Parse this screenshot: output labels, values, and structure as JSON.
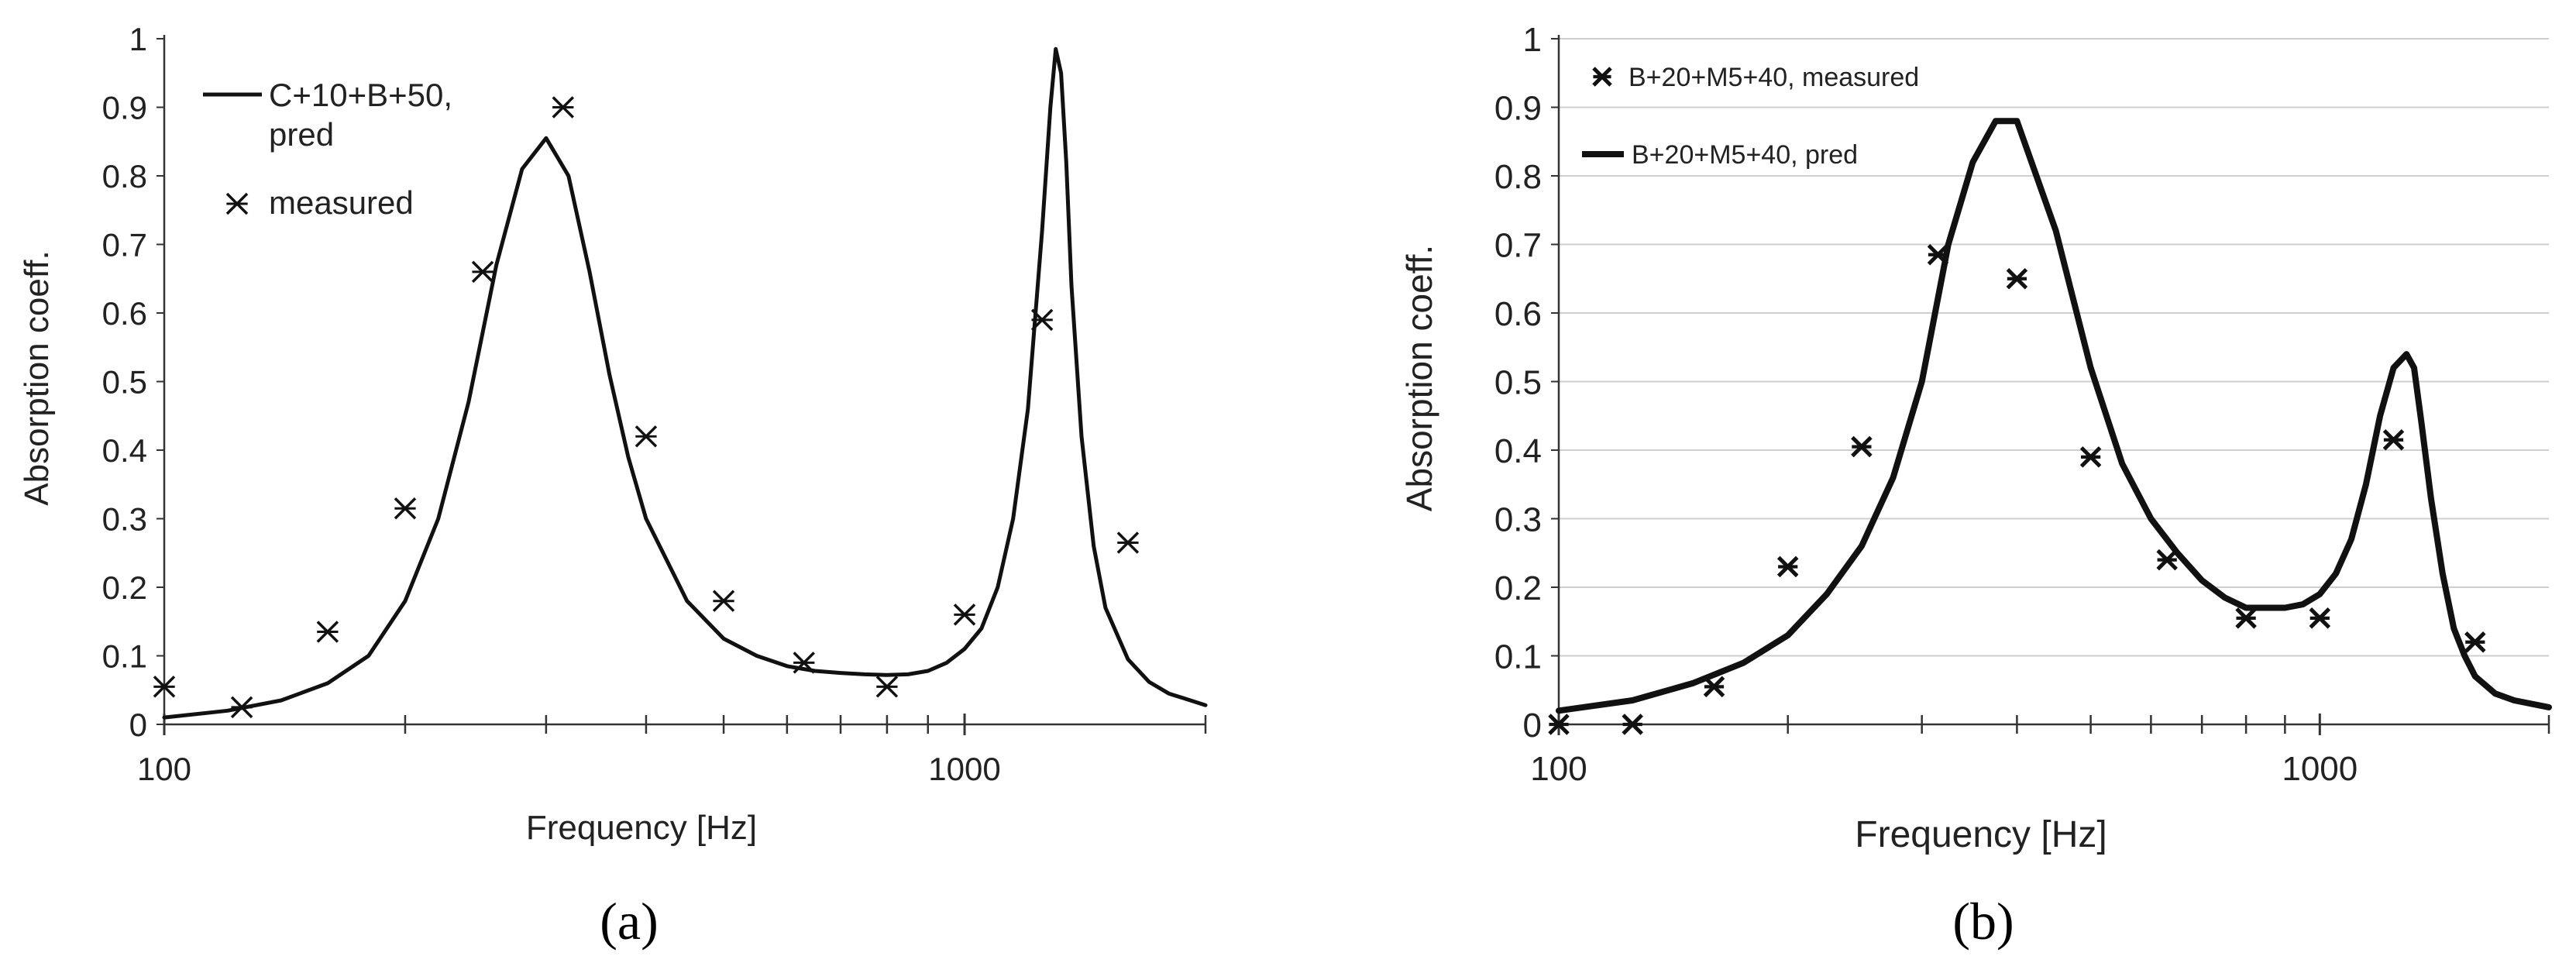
{
  "chart_data": [
    {
      "type": "line",
      "panel_label": "(a)",
      "xlabel": "Frequency [Hz]",
      "ylabel": "Absorption coeff.",
      "xscale": "log",
      "xlim": [
        100,
        2000
      ],
      "ylim": [
        0,
        1
      ],
      "x_tick_labels": [
        "100",
        "1000"
      ],
      "y_tick_labels": [
        "0",
        "0.1",
        "0.2",
        "0.3",
        "0.4",
        "0.5",
        "0.6",
        "0.7",
        "0.8",
        "0.9",
        "1"
      ],
      "grid": false,
      "legend_position": "top-left",
      "legend": [
        {
          "label_lines": [
            "C+10+B+50,",
            "pred"
          ],
          "kind": "line"
        },
        {
          "label_lines": [
            "measured"
          ],
          "kind": "marker"
        }
      ],
      "series": [
        {
          "name": "C+10+B+50, pred",
          "kind": "line",
          "x": [
            100,
            120,
            140,
            160,
            180,
            200,
            220,
            240,
            260,
            280,
            300,
            320,
            340,
            360,
            380,
            400,
            450,
            500,
            550,
            600,
            650,
            700,
            750,
            800,
            850,
            900,
            950,
            1000,
            1050,
            1100,
            1150,
            1200,
            1250,
            1280,
            1300,
            1320,
            1340,
            1360,
            1400,
            1450,
            1500,
            1600,
            1700,
            1800,
            2000
          ],
          "y": [
            0.01,
            0.02,
            0.035,
            0.06,
            0.1,
            0.18,
            0.3,
            0.47,
            0.67,
            0.81,
            0.855,
            0.8,
            0.66,
            0.51,
            0.39,
            0.3,
            0.18,
            0.125,
            0.1,
            0.085,
            0.078,
            0.075,
            0.073,
            0.072,
            0.073,
            0.078,
            0.09,
            0.11,
            0.14,
            0.2,
            0.3,
            0.46,
            0.72,
            0.9,
            0.985,
            0.95,
            0.82,
            0.64,
            0.42,
            0.26,
            0.17,
            0.095,
            0.062,
            0.045,
            0.028
          ]
        },
        {
          "name": "measured",
          "kind": "scatter",
          "x": [
            100,
            125,
            160,
            200,
            250,
            315,
            400,
            500,
            630,
            800,
            1000,
            1250,
            1600
          ],
          "y": [
            0.055,
            0.025,
            0.135,
            0.315,
            0.66,
            0.9,
            0.42,
            0.18,
            0.09,
            0.055,
            0.16,
            0.59,
            0.265
          ]
        }
      ]
    },
    {
      "type": "line",
      "panel_label": "(b)",
      "xlabel": "Frequency  [Hz]",
      "ylabel": "Absorption coeff.",
      "xscale": "log",
      "xlim": [
        100,
        2000
      ],
      "ylim": [
        0,
        1
      ],
      "x_tick_labels": [
        "100",
        "1000"
      ],
      "y_tick_labels": [
        "0",
        "0.1",
        "0.2",
        "0.3",
        "0.4",
        "0.5",
        "0.6",
        "0.7",
        "0.8",
        "0.9",
        "1"
      ],
      "grid": true,
      "legend_position": "top-left",
      "legend": [
        {
          "label_lines": [
            "B+20+M5+40, measured"
          ],
          "kind": "marker"
        },
        {
          "label_lines": [
            "B+20+M5+40,  pred"
          ],
          "kind": "line"
        }
      ],
      "series": [
        {
          "name": "B+20+M5+40, measured",
          "kind": "scatter",
          "x": [
            100,
            125,
            160,
            200,
            250,
            315,
            400,
            500,
            630,
            800,
            1000,
            1250,
            1600
          ],
          "y": [
            0.0,
            0.0,
            0.055,
            0.23,
            0.405,
            0.685,
            0.65,
            0.39,
            0.24,
            0.155,
            0.155,
            0.415,
            0.12
          ]
        },
        {
          "name": "B+20+M5+40,  pred",
          "kind": "line",
          "x": [
            100,
            125,
            150,
            175,
            200,
            225,
            250,
            275,
            300,
            325,
            350,
            375,
            400,
            450,
            500,
            550,
            600,
            650,
            700,
            750,
            800,
            850,
            900,
            950,
            1000,
            1050,
            1100,
            1150,
            1200,
            1250,
            1300,
            1330,
            1360,
            1400,
            1450,
            1500,
            1550,
            1600,
            1700,
            1800,
            2000
          ],
          "y": [
            0.02,
            0.035,
            0.06,
            0.09,
            0.13,
            0.19,
            0.26,
            0.36,
            0.5,
            0.7,
            0.82,
            0.88,
            0.88,
            0.72,
            0.52,
            0.38,
            0.3,
            0.25,
            0.21,
            0.185,
            0.17,
            0.17,
            0.17,
            0.175,
            0.19,
            0.22,
            0.27,
            0.35,
            0.45,
            0.52,
            0.54,
            0.52,
            0.44,
            0.33,
            0.22,
            0.14,
            0.1,
            0.07,
            0.045,
            0.035,
            0.025
          ]
        }
      ]
    }
  ]
}
